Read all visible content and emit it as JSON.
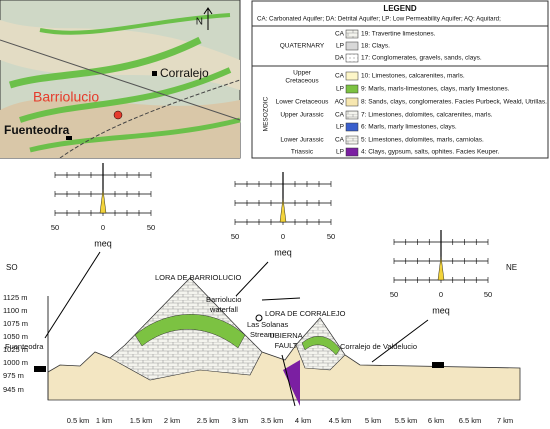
{
  "map": {
    "north": "N",
    "places": [
      "Corralejo",
      "Barriolucio",
      "Fuenteodra"
    ]
  },
  "legend": {
    "title": "LEGEND",
    "abbreviations": "CA: Carbonated Aquifer; DA: Detrital Aquifer; LP: Low Permeability Aquifer; AQ: Aquitard;",
    "quaternary": "QUATERNARY",
    "mesozoic": "MESOZOIC",
    "periods": [
      "Upper",
      "Cretaceous",
      "Lower Cretaceous",
      "Upper Jurassic",
      "Lower Jurassic",
      "Triassic"
    ],
    "rows": [
      {
        "code": "CA",
        "text": "19: Travertine limestones."
      },
      {
        "code": "LP",
        "text": "18: Clays."
      },
      {
        "code": "DA",
        "text": "17: Conglomerates, gravels, sands, clays."
      },
      {
        "code": "CA",
        "text": "10: Limestones, calcarenites, marls."
      },
      {
        "code": "LP",
        "text": "9: Marls, marls-limestones, clays, marly limestones."
      },
      {
        "code": "AQ",
        "text": "8: Sands, clays, conglomerates. Facies Purbeck, Weald, Utrillas."
      },
      {
        "code": "CA",
        "text": "7: Limestones, dolomites, calcarenites, marls."
      },
      {
        "code": "LP",
        "text": "6: Marls, marly limestones, clays."
      },
      {
        "code": "CA",
        "text": "5: Limestones, dolomites, marls, carniolas."
      },
      {
        "code": "LP",
        "text": "4: Clays, gypsum, salts, ophites. Facies Keuper."
      }
    ]
  },
  "stiff_diagrams": [
    {
      "ticks": [
        "50",
        "0",
        "50"
      ],
      "unit": "meq"
    },
    {
      "ticks": [
        "50",
        "0",
        "50"
      ],
      "unit": "meq"
    },
    {
      "ticks": [
        "50",
        "0",
        "50"
      ],
      "unit": "meq"
    }
  ],
  "section": {
    "left": "SO",
    "right": "NE",
    "elevations": [
      "1125 m",
      "1100 m",
      "1075 m",
      "1050 m",
      "1025 m",
      "1000 m",
      "975 m",
      "945 m"
    ],
    "distances": [
      "0.5 km",
      "1 km",
      "1.5 km",
      "2 km",
      "2.5 km",
      "3 km",
      "3.5 km",
      "4 km",
      "4.5 km",
      "5 km",
      "5.5 km",
      "6 km",
      "6.5 km",
      "7 km"
    ],
    "labels": [
      "LORA DE BARRIOLUCIO",
      "Barriolucio",
      "waterfall",
      "Las Solanas",
      "Stream",
      "LORA DE CORRALEJO",
      "UBIERNA",
      "FAULT",
      "Corralejo de Valdelucio",
      "Fuenteodra"
    ]
  }
}
